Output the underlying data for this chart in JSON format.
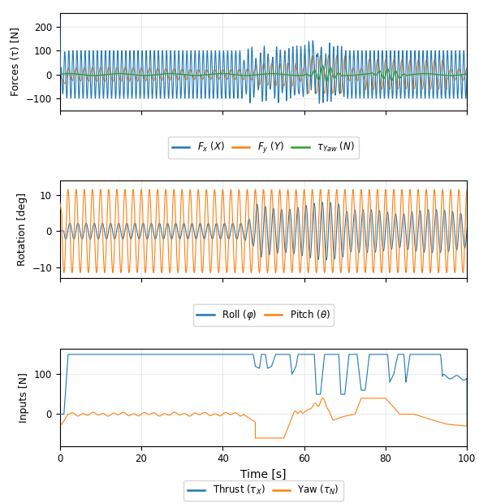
{
  "colors": {
    "blue": "#1f77b4",
    "orange": "#ff7f0e",
    "green": "#2ca02c"
  },
  "subplot1": {
    "ylabel": "Forces (τ) [N]",
    "ylim": [
      -150,
      260
    ],
    "yticks": [
      -100,
      0,
      100,
      200
    ],
    "legend": [
      {
        "label": "$F_x$ $(X)$",
        "color": "#1f77b4"
      },
      {
        "label": "$F_y$ $(Y)$",
        "color": "#ff7f0e"
      },
      {
        "label": "$\\tau_{Yaw}$ $(N)$",
        "color": "#2ca02c"
      }
    ]
  },
  "subplot2": {
    "ylabel": "Rotation [deg]",
    "ylim": [
      -13,
      14
    ],
    "yticks": [
      -10,
      0,
      10
    ],
    "legend": [
      {
        "label": "Roll $(φ)$",
        "color": "#1f77b4"
      },
      {
        "label": "Pitch $(θ)$",
        "color": "#ff7f0e"
      }
    ]
  },
  "subplot3": {
    "ylabel": "Inputs [N]",
    "xlabel": "Time [s]",
    "ylim": [
      -80,
      165
    ],
    "yticks": [
      0,
      100
    ],
    "legend": [
      {
        "label": "Thrust $(τ_X)$",
        "color": "#1f77b4"
      },
      {
        "label": "Yaw $(τ_N)$",
        "color": "#ff7f0e"
      }
    ]
  },
  "xlim": [
    0,
    100
  ],
  "xticks": [
    0,
    20,
    40,
    60,
    80,
    100
  ]
}
